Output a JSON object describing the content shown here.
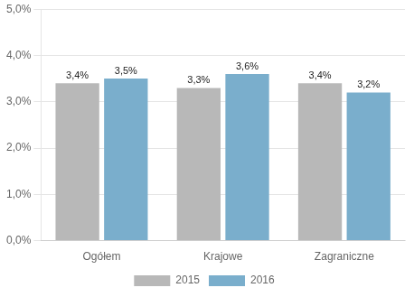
{
  "chart_data": {
    "type": "bar",
    "categories": [
      "Ogółem",
      "Krajowe",
      "Zagraniczne"
    ],
    "series": [
      {
        "name": "2015",
        "color": "#b8b8b8",
        "values": [
          3.4,
          3.3,
          3.4
        ],
        "value_labels": [
          "3,4%",
          "3,3%",
          "3,4%"
        ]
      },
      {
        "name": "2016",
        "color": "#7aaecc",
        "values": [
          3.5,
          3.6,
          3.2
        ],
        "value_labels": [
          "3,5%",
          "3,6%",
          "3,2%"
        ]
      }
    ],
    "ylim": [
      0.0,
      5.0
    ],
    "yticks": [
      {
        "value": 0.0,
        "label": "0,0%"
      },
      {
        "value": 1.0,
        "label": "1,0%"
      },
      {
        "value": 2.0,
        "label": "2,0%"
      },
      {
        "value": 3.0,
        "label": "3,0%"
      },
      {
        "value": 4.0,
        "label": "4,0%"
      },
      {
        "value": 5.0,
        "label": "5,0%"
      }
    ],
    "grid": true,
    "legend": "bottom",
    "data_labels": true
  }
}
